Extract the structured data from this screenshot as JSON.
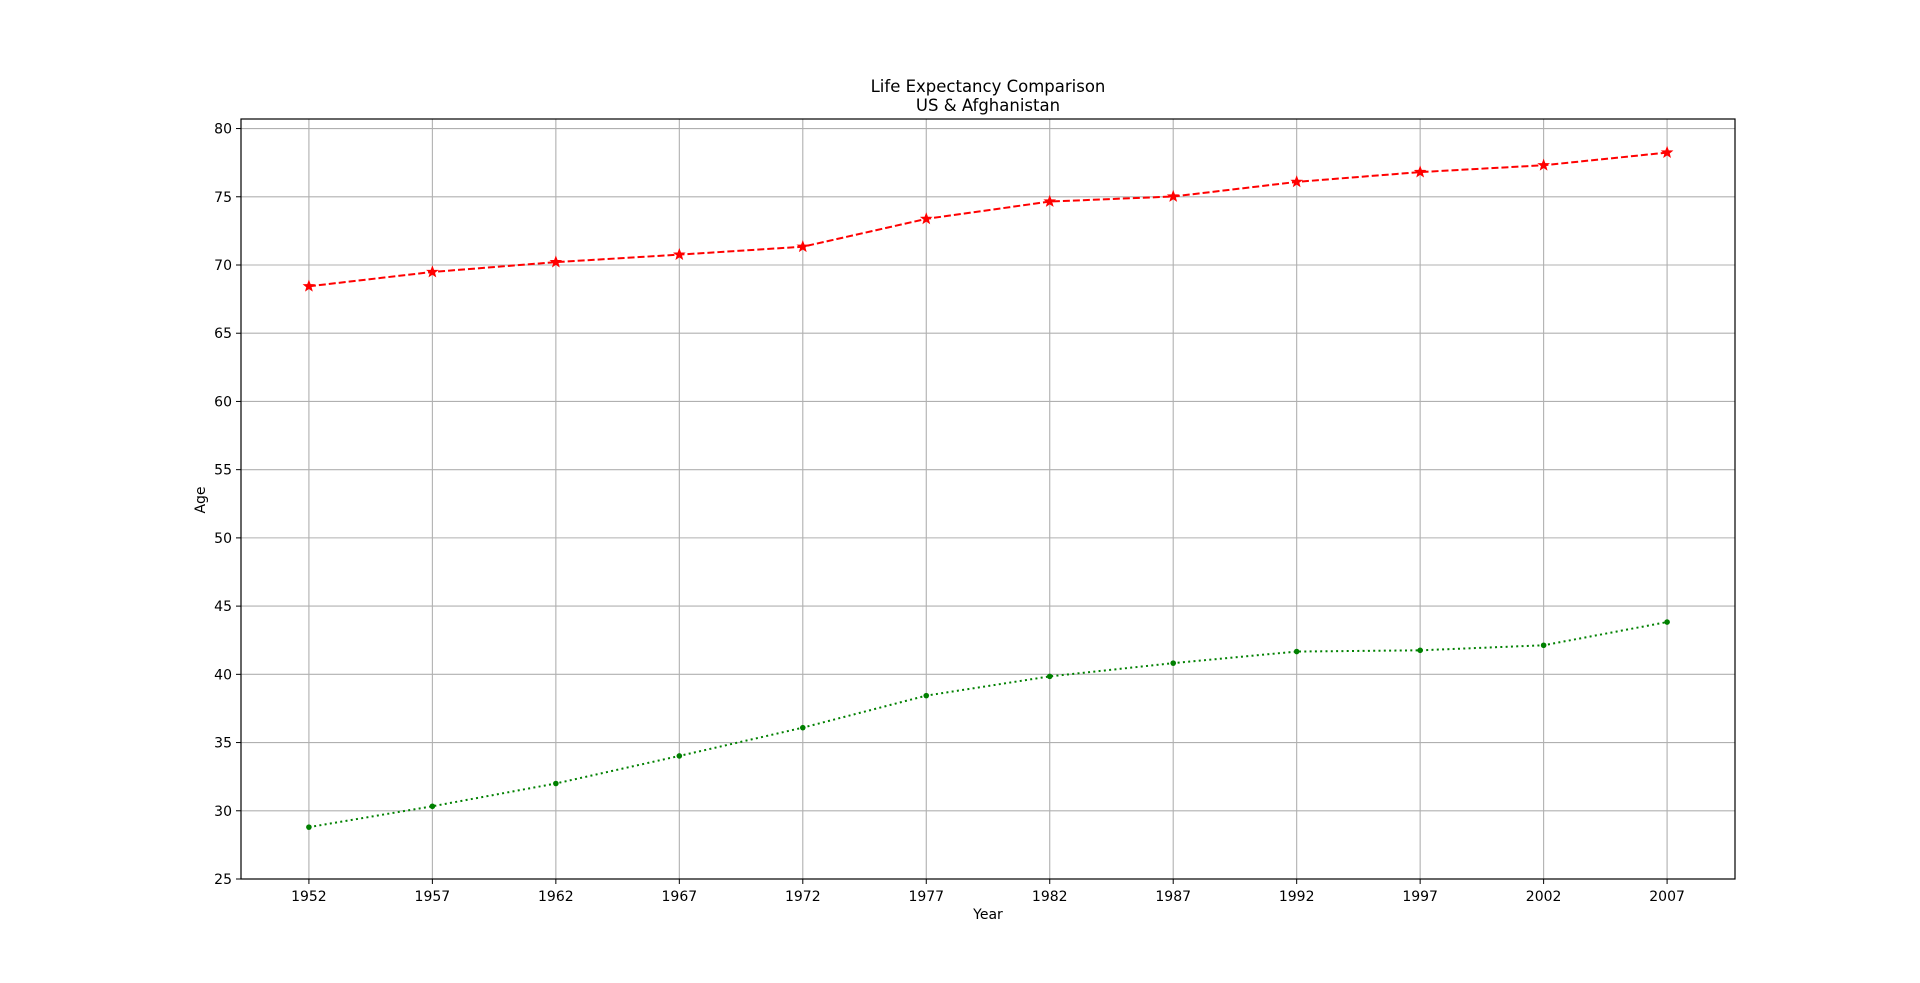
{
  "chart_data": {
    "type": "line",
    "title": "Life Expectancy Comparison",
    "subtitle": "US & Afghanistan",
    "xlabel": "Year",
    "ylabel": "Age",
    "x": [
      1952,
      1957,
      1962,
      1967,
      1972,
      1977,
      1982,
      1987,
      1992,
      1997,
      2002,
      2007
    ],
    "x_tick_labels": [
      "1952",
      "1957",
      "1962",
      "1967",
      "1972",
      "1977",
      "1982",
      "1987",
      "1992",
      "1997",
      "2002",
      "2007"
    ],
    "xlim": [
      1949.25,
      2009.75
    ],
    "ylim": [
      25,
      80.7
    ],
    "y_ticks": [
      25,
      30,
      35,
      40,
      45,
      50,
      55,
      60,
      65,
      70,
      75,
      80
    ],
    "y_tick_labels": [
      "25",
      "30",
      "35",
      "40",
      "45",
      "50",
      "55",
      "60",
      "65",
      "70",
      "75",
      "80"
    ],
    "grid": true,
    "series": [
      {
        "values": [
          68.44,
          69.49,
          70.21,
          70.76,
          71.34,
          73.38,
          74.65,
          75.02,
          76.09,
          76.81,
          77.31,
          78.24
        ],
        "color": "#ff0000",
        "line_style": "dashed",
        "marker": "star"
      },
      {
        "values": [
          28.8,
          30.33,
          32.0,
          34.02,
          36.09,
          38.44,
          39.85,
          40.82,
          41.67,
          41.76,
          42.13,
          43.83
        ],
        "color": "#008000",
        "line_style": "dotted",
        "marker": "dot"
      }
    ]
  }
}
